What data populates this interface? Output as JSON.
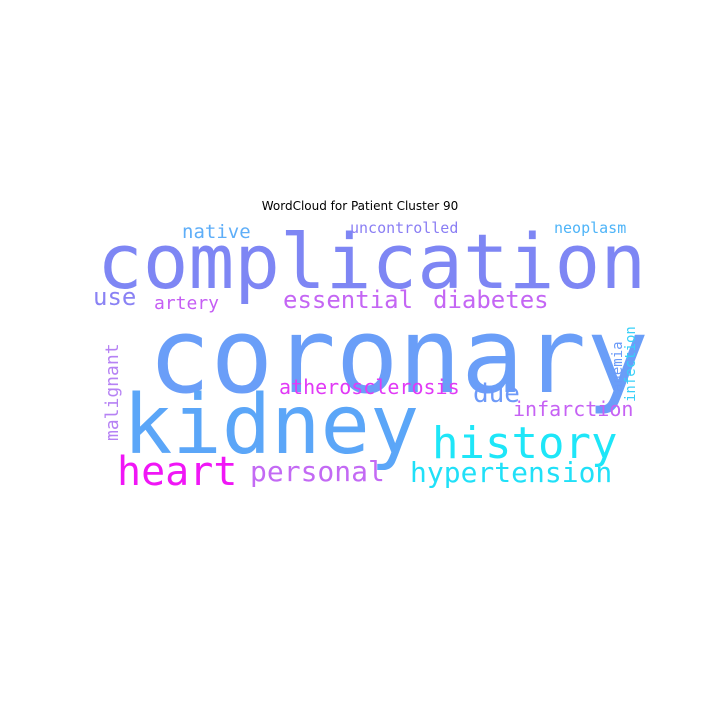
{
  "chart_data": {
    "type": "wordcloud",
    "title": "WordCloud for Patient Cluster 90",
    "words": [
      {
        "text": "coronary",
        "weight": 1.0,
        "color": "#6a9ef8"
      },
      {
        "text": "complication",
        "weight": 0.78,
        "color": "#7e86f4"
      },
      {
        "text": "kidney",
        "weight": 0.84,
        "color": "#5ba6f8"
      },
      {
        "text": "history",
        "weight": 0.48,
        "color": "#1ee6f8"
      },
      {
        "text": "heart",
        "weight": 0.41,
        "color": "#f016f6"
      },
      {
        "text": "hypertension",
        "weight": 0.31,
        "color": "#20e0f8"
      },
      {
        "text": "personal",
        "weight": 0.3,
        "color": "#c36af4"
      },
      {
        "text": "essential",
        "weight": 0.27,
        "color": "#c466f4"
      },
      {
        "text": "diabetes",
        "weight": 0.27,
        "color": "#c466f4"
      },
      {
        "text": "due",
        "weight": 0.25,
        "color": "#6e9af8"
      },
      {
        "text": "use",
        "weight": 0.23,
        "color": "#8a82f4"
      },
      {
        "text": "atherosclerosis",
        "weight": 0.21,
        "color": "#e13af6"
      },
      {
        "text": "infarction",
        "weight": 0.2,
        "color": "#c662f4"
      },
      {
        "text": "malignant",
        "weight": 0.19,
        "color": "#b682f4"
      },
      {
        "text": "native",
        "weight": 0.18,
        "color": "#5eaef8"
      },
      {
        "text": "artery",
        "weight": 0.17,
        "color": "#c55ef4"
      },
      {
        "text": "infection",
        "weight": 0.15,
        "color": "#38d0f8"
      },
      {
        "text": "anemia",
        "weight": 0.15,
        "color": "#6a9af8"
      },
      {
        "text": "uncontrolled",
        "weight": 0.14,
        "color": "#8a7ef4"
      },
      {
        "text": "neoplasm",
        "weight": 0.14,
        "color": "#4eb4f8"
      }
    ]
  }
}
